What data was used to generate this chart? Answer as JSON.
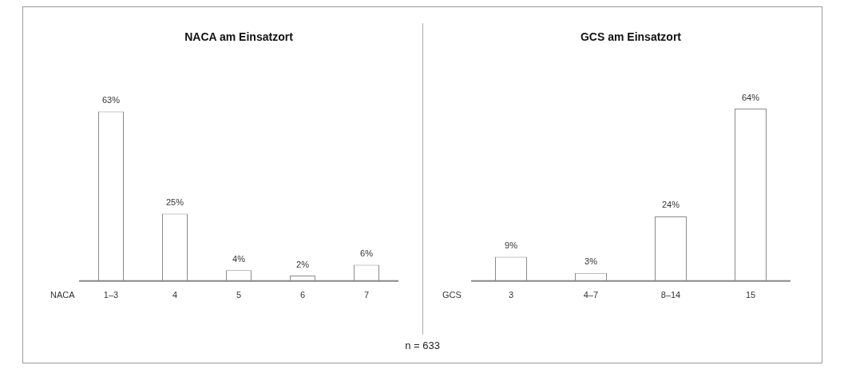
{
  "chart_data": [
    {
      "type": "bar",
      "title": "NACA am Einsatzort",
      "xlabel": "NACA",
      "categories": [
        "1–3",
        "4",
        "5",
        "6",
        "7"
      ],
      "values": [
        63,
        25,
        4,
        2,
        6
      ],
      "value_labels": [
        "63%",
        "25%",
        "4%",
        "2%",
        "6%"
      ],
      "color": "#ffffff",
      "grid": false,
      "legend": false
    },
    {
      "type": "bar",
      "title": "GCS am Einsatzort",
      "xlabel": "GCS",
      "categories": [
        "3",
        "4–7",
        "8–14",
        "15"
      ],
      "values": [
        9,
        3,
        24,
        64
      ],
      "value_labels": [
        "9%",
        "3%",
        "24%",
        "64%"
      ],
      "color": "#ffffff",
      "grid": false,
      "legend": false,
      "annotations": [
        "n = 633"
      ]
    }
  ]
}
